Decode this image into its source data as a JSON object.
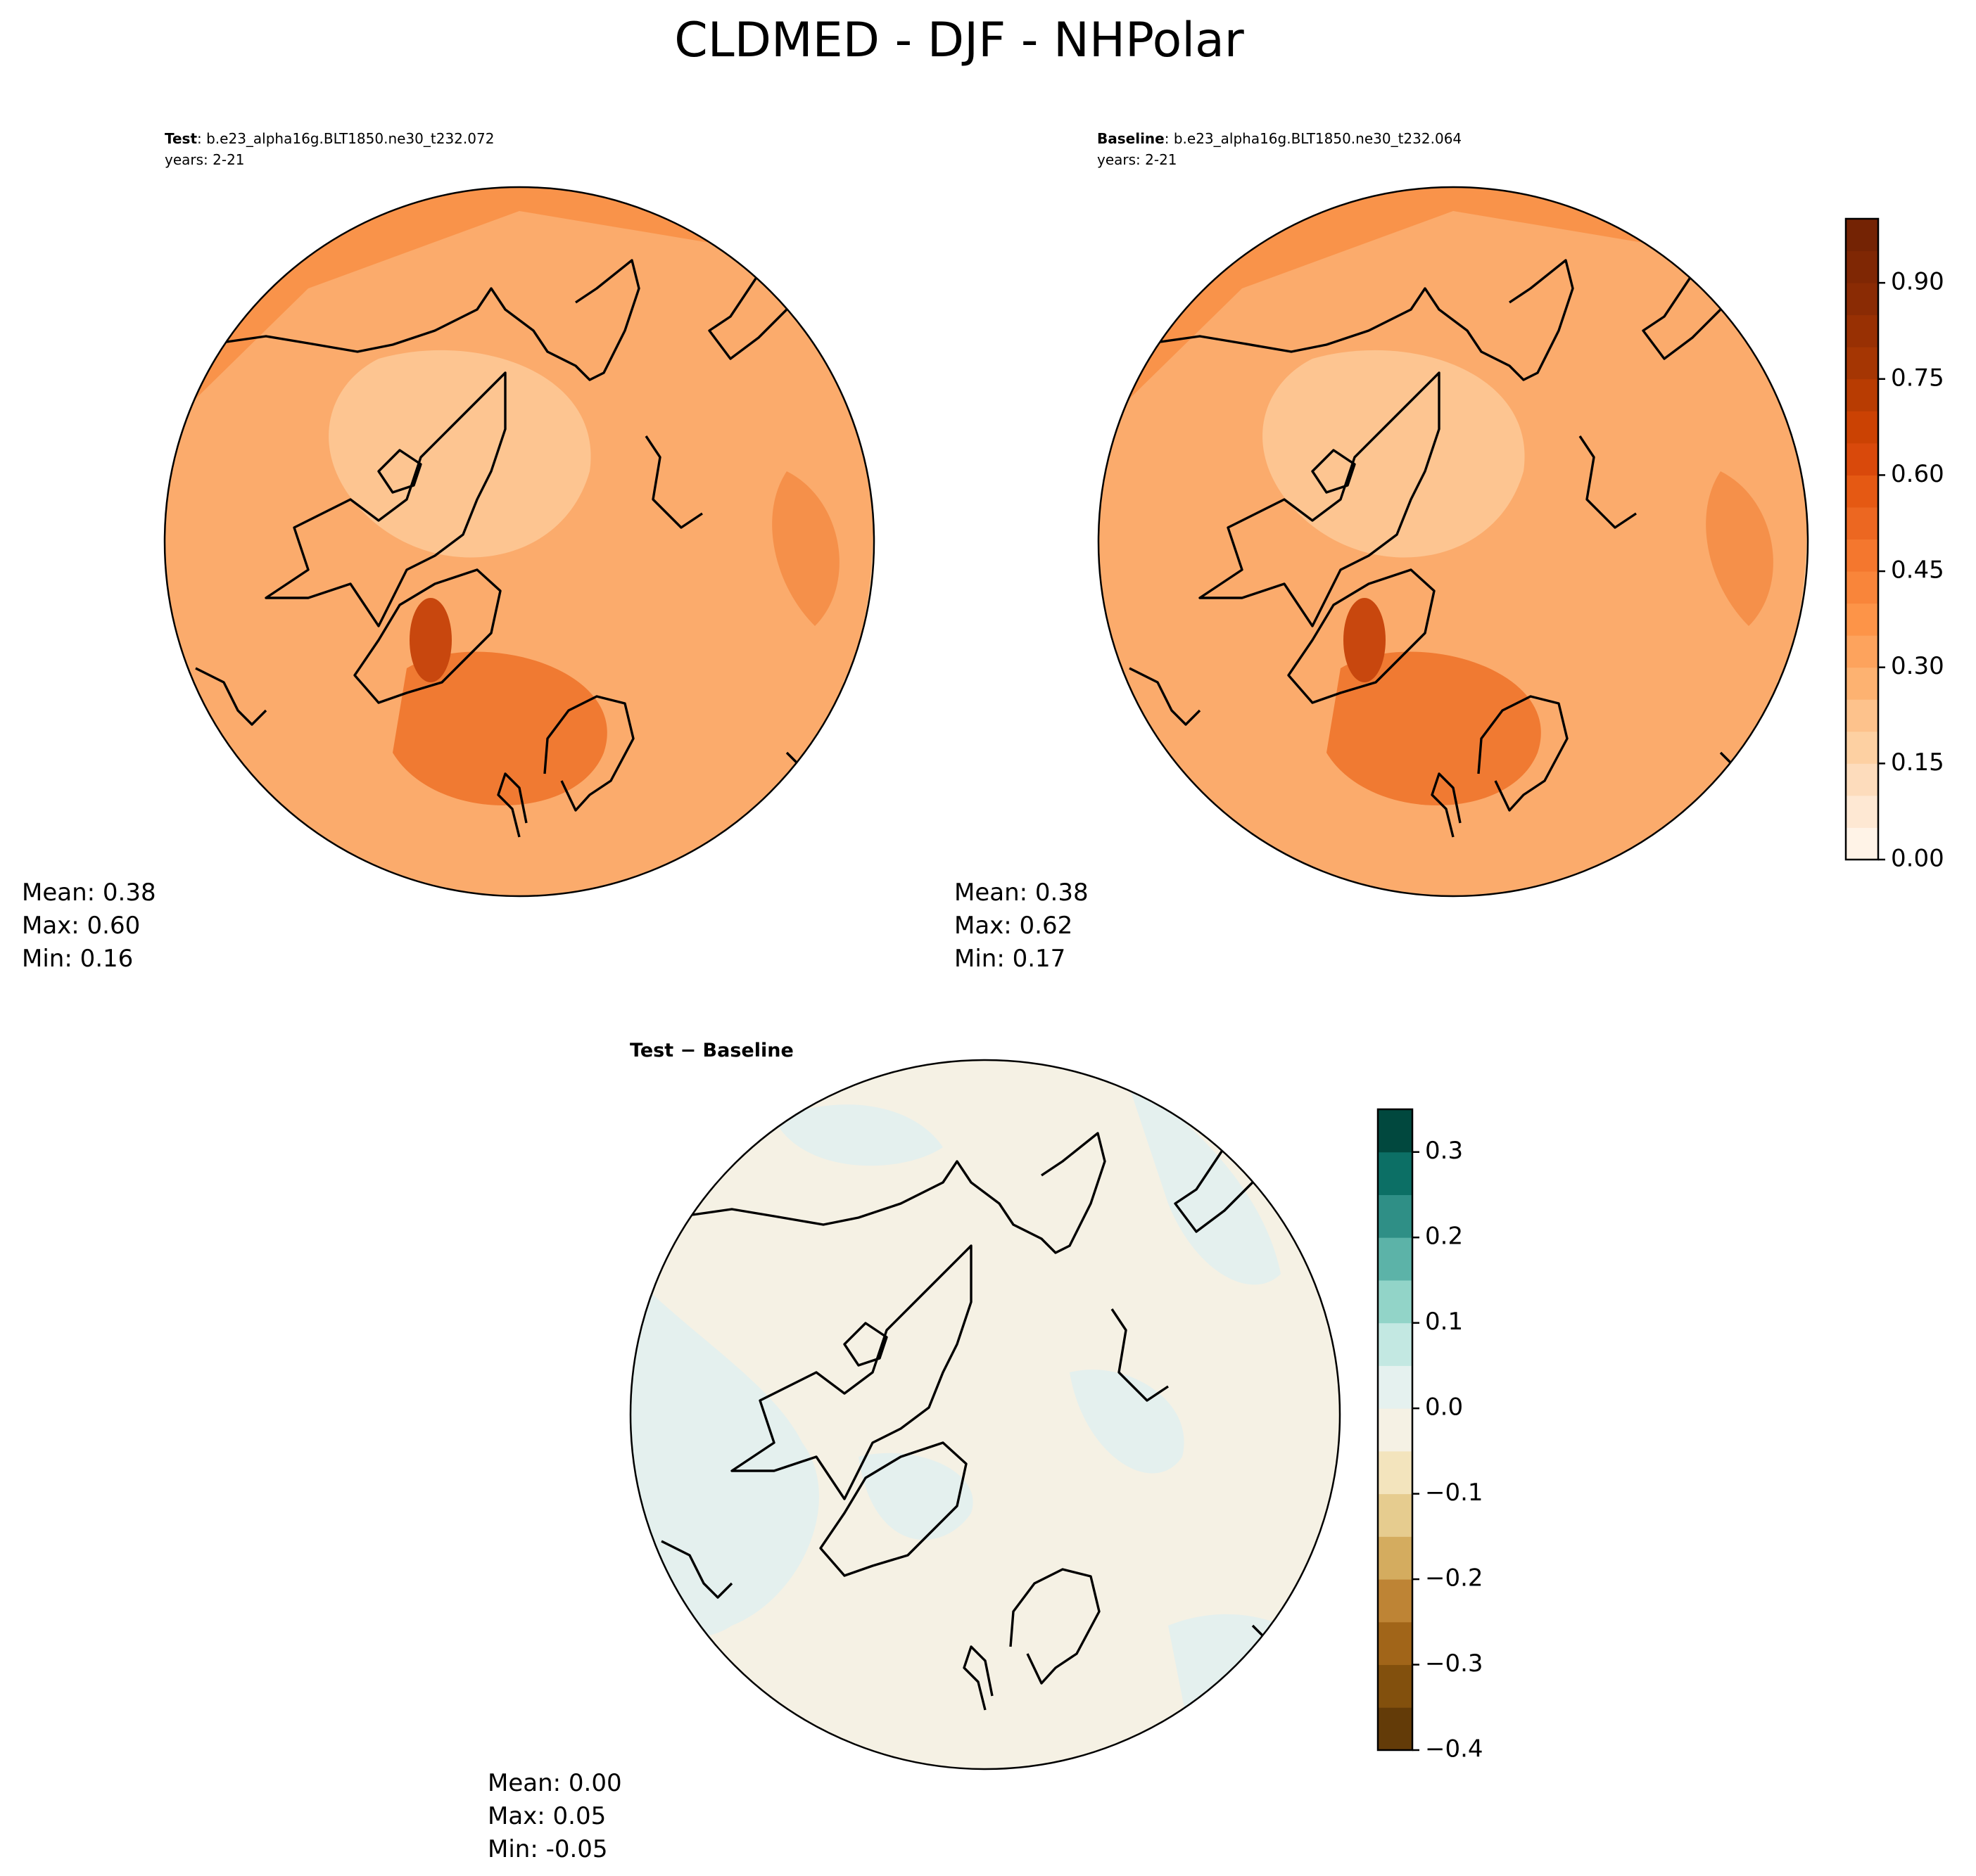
{
  "title": "CLDMED - DJF - NHPolar",
  "panels": [
    {
      "label": "Test",
      "case": ": b.e23_alpha16g.BLT1850.ne30_t232.072",
      "years": "years: 2-21",
      "stats": [
        "Mean:  0.38",
        "Max:  0.60",
        "Min:  0.16"
      ]
    },
    {
      "label": "Baseline",
      "case": ": b.e23_alpha16g.BLT1850.ne30_t232.064",
      "years": "years: 2-21",
      "stats": [
        "Mean:  0.38",
        "Max:  0.62",
        "Min:  0.17"
      ]
    }
  ],
  "difference": {
    "title": "Test − Baseline",
    "stats": [
      "Mean:  0.00",
      "Max:  0.05",
      "Min: -0.05"
    ]
  },
  "colorbars": [
    {
      "levels": [
        0,
        0.05,
        0.1,
        0.15,
        0.2,
        0.25,
        0.3,
        0.35,
        0.4,
        0.45,
        0.5,
        0.55,
        0.6,
        0.65,
        0.7,
        0.75,
        0.8,
        0.85,
        0.9,
        0.95,
        1.0
      ],
      "colors": [
        "#fff3e7",
        "#fee8d3",
        "#fddcbc",
        "#fdd0a2",
        "#fdc28c",
        "#fdb271",
        "#fda35d",
        "#fd9448",
        "#f9853a",
        "#f4772e",
        "#ec6721",
        "#e55913",
        "#d9490b",
        "#cb4203",
        "#b83c02",
        "#a53603",
        "#983003",
        "#8a2b04",
        "#7f2704",
        "#742304"
      ],
      "ticks": [
        {
          "value": 0,
          "label": "0.00"
        },
        {
          "value": 0.15,
          "label": "0.15"
        },
        {
          "value": 0.3,
          "label": "0.30"
        },
        {
          "value": 0.45,
          "label": "0.45"
        },
        {
          "value": 0.6,
          "label": "0.60"
        },
        {
          "value": 0.75,
          "label": "0.75"
        },
        {
          "value": 0.9,
          "label": "0.90"
        }
      ]
    },
    {
      "levels": [
        -0.4,
        -0.35,
        -0.3,
        -0.25,
        -0.2,
        -0.15,
        -0.1,
        -0.05,
        0,
        0.05,
        0.1,
        0.15,
        0.2,
        0.25,
        0.3,
        0.35
      ],
      "colors": [
        "#633b08",
        "#82500d",
        "#a16519",
        "#be8435",
        "#d4ac5f",
        "#e6cc8f",
        "#f3e4bd",
        "#f5f1e4",
        "#e5f1ef",
        "#c3e8e2",
        "#92d4c8",
        "#5cb3a8",
        "#2f8f86",
        "#0c6f65",
        "#01483e"
      ],
      "ticks": [
        {
          "value": -0.4,
          "label": "−0.4"
        },
        {
          "value": -0.3,
          "label": "−0.3"
        },
        {
          "value": -0.2,
          "label": "−0.2"
        },
        {
          "value": -0.1,
          "label": "−0.1"
        },
        {
          "value": 0,
          "label": "0.0"
        },
        {
          "value": 0.1,
          "label": "0.1"
        },
        {
          "value": 0.2,
          "label": "0.2"
        },
        {
          "value": 0.3,
          "label": "0.3"
        }
      ]
    }
  ]
}
